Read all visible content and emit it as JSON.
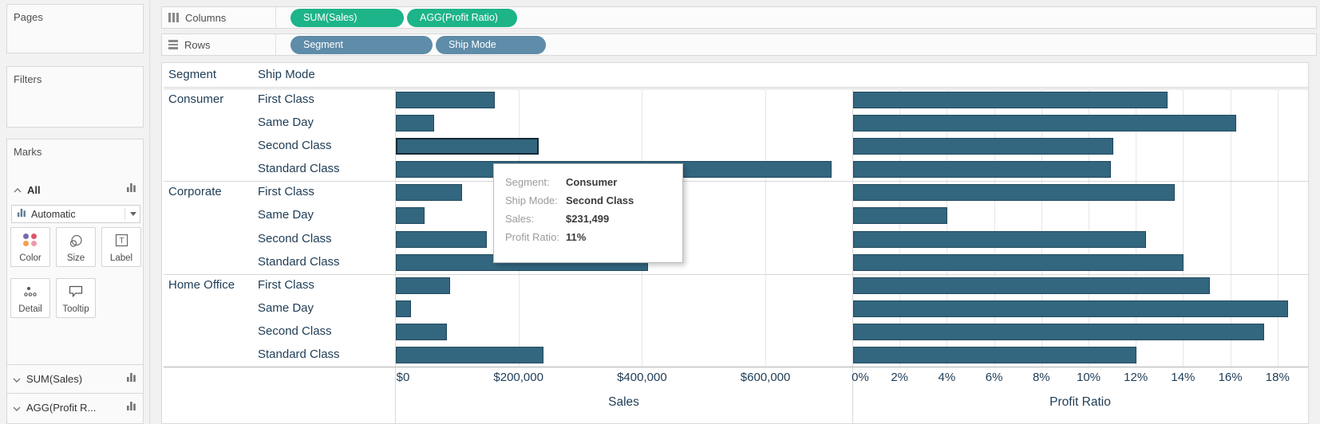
{
  "shelves": {
    "columns": {
      "label": "Columns",
      "pills": [
        "SUM(Sales)",
        "AGG(Profit Ratio)"
      ]
    },
    "rows": {
      "label": "Rows",
      "pills": [
        "Segment",
        "Ship Mode"
      ]
    }
  },
  "sidebar": {
    "pages": {
      "title": "Pages"
    },
    "filters": {
      "title": "Filters"
    },
    "marks": {
      "title": "Marks",
      "card_label": "All",
      "mark_type_selector": "Automatic",
      "property_buttons": [
        "Color",
        "Size",
        "Label",
        "Detail",
        "Tooltip"
      ],
      "measure_cards": [
        "SUM(Sales)",
        "AGG(Profit R..."
      ]
    }
  },
  "icons": {
    "columns_shelf": "columns-icon",
    "rows_shelf": "rows-icon",
    "color_dot_colors": [
      "#7d69ac",
      "#e0556a",
      "#f2a14c",
      "#ee9ab0"
    ]
  },
  "colors": {
    "measure_pill": "#1db489",
    "dimension_pill": "#5e8ca9",
    "bar_fill": "#33667f",
    "bar_border": "#234a5e",
    "highlight_border": "#142935",
    "chart_text": "#1e3c55"
  },
  "tooltip": {
    "rows": [
      {
        "label": "Segment:",
        "value": "Consumer"
      },
      {
        "label": "Ship Mode:",
        "value": "Second Class"
      },
      {
        "label": "Sales:",
        "value": "$231,499"
      },
      {
        "label": "Profit Ratio:",
        "value": "11%"
      }
    ]
  },
  "chart_data": {
    "type": "bar",
    "orientation": "horizontal",
    "column_headers": [
      "Segment",
      "Ship Mode"
    ],
    "panels": [
      {
        "measure": "Sales",
        "axis_title": "Sales",
        "axis_ticks": [
          "$0",
          "$200,000",
          "$400,000",
          "$600,000"
        ],
        "axis_tick_values": [
          0,
          200000,
          400000,
          600000
        ],
        "axis_max": 740000,
        "grid": true
      },
      {
        "measure": "Profit Ratio",
        "axis_title": "Profit Ratio",
        "axis_ticks": [
          "0%",
          "2%",
          "4%",
          "6%",
          "8%",
          "10%",
          "12%",
          "14%",
          "16%",
          "18%"
        ],
        "axis_tick_values": [
          0,
          2,
          4,
          6,
          8,
          10,
          12,
          14,
          16,
          18
        ],
        "axis_max": 19.3,
        "grid": true
      }
    ],
    "groups": [
      {
        "segment": "Consumer",
        "rows": [
          {
            "ship_mode": "First Class",
            "sales": 160000,
            "profit_ratio": 13.3,
            "highlighted": false
          },
          {
            "ship_mode": "Same Day",
            "sales": 62000,
            "profit_ratio": 16.2,
            "highlighted": false
          },
          {
            "ship_mode": "Second Class",
            "sales": 231499,
            "profit_ratio": 11.0,
            "highlighted": true
          },
          {
            "ship_mode": "Standard Class",
            "sales": 706000,
            "profit_ratio": 10.9,
            "highlighted": false
          }
        ]
      },
      {
        "segment": "Corporate",
        "rows": [
          {
            "ship_mode": "First Class",
            "sales": 107000,
            "profit_ratio": 13.6,
            "highlighted": false
          },
          {
            "ship_mode": "Same Day",
            "sales": 46500,
            "profit_ratio": 4.0,
            "highlighted": false
          },
          {
            "ship_mode": "Second Class",
            "sales": 147000,
            "profit_ratio": 12.4,
            "highlighted": false
          },
          {
            "ship_mode": "Standard Class",
            "sales": 408000,
            "profit_ratio": 14.0,
            "highlighted": false
          }
        ]
      },
      {
        "segment": "Home Office",
        "rows": [
          {
            "ship_mode": "First Class",
            "sales": 88000,
            "profit_ratio": 15.1,
            "highlighted": false
          },
          {
            "ship_mode": "Same Day",
            "sales": 24500,
            "profit_ratio": 18.4,
            "highlighted": false
          },
          {
            "ship_mode": "Second Class",
            "sales": 82600,
            "profit_ratio": 17.4,
            "highlighted": false
          },
          {
            "ship_mode": "Standard Class",
            "sales": 239000,
            "profit_ratio": 12.0,
            "highlighted": false
          }
        ]
      }
    ]
  }
}
